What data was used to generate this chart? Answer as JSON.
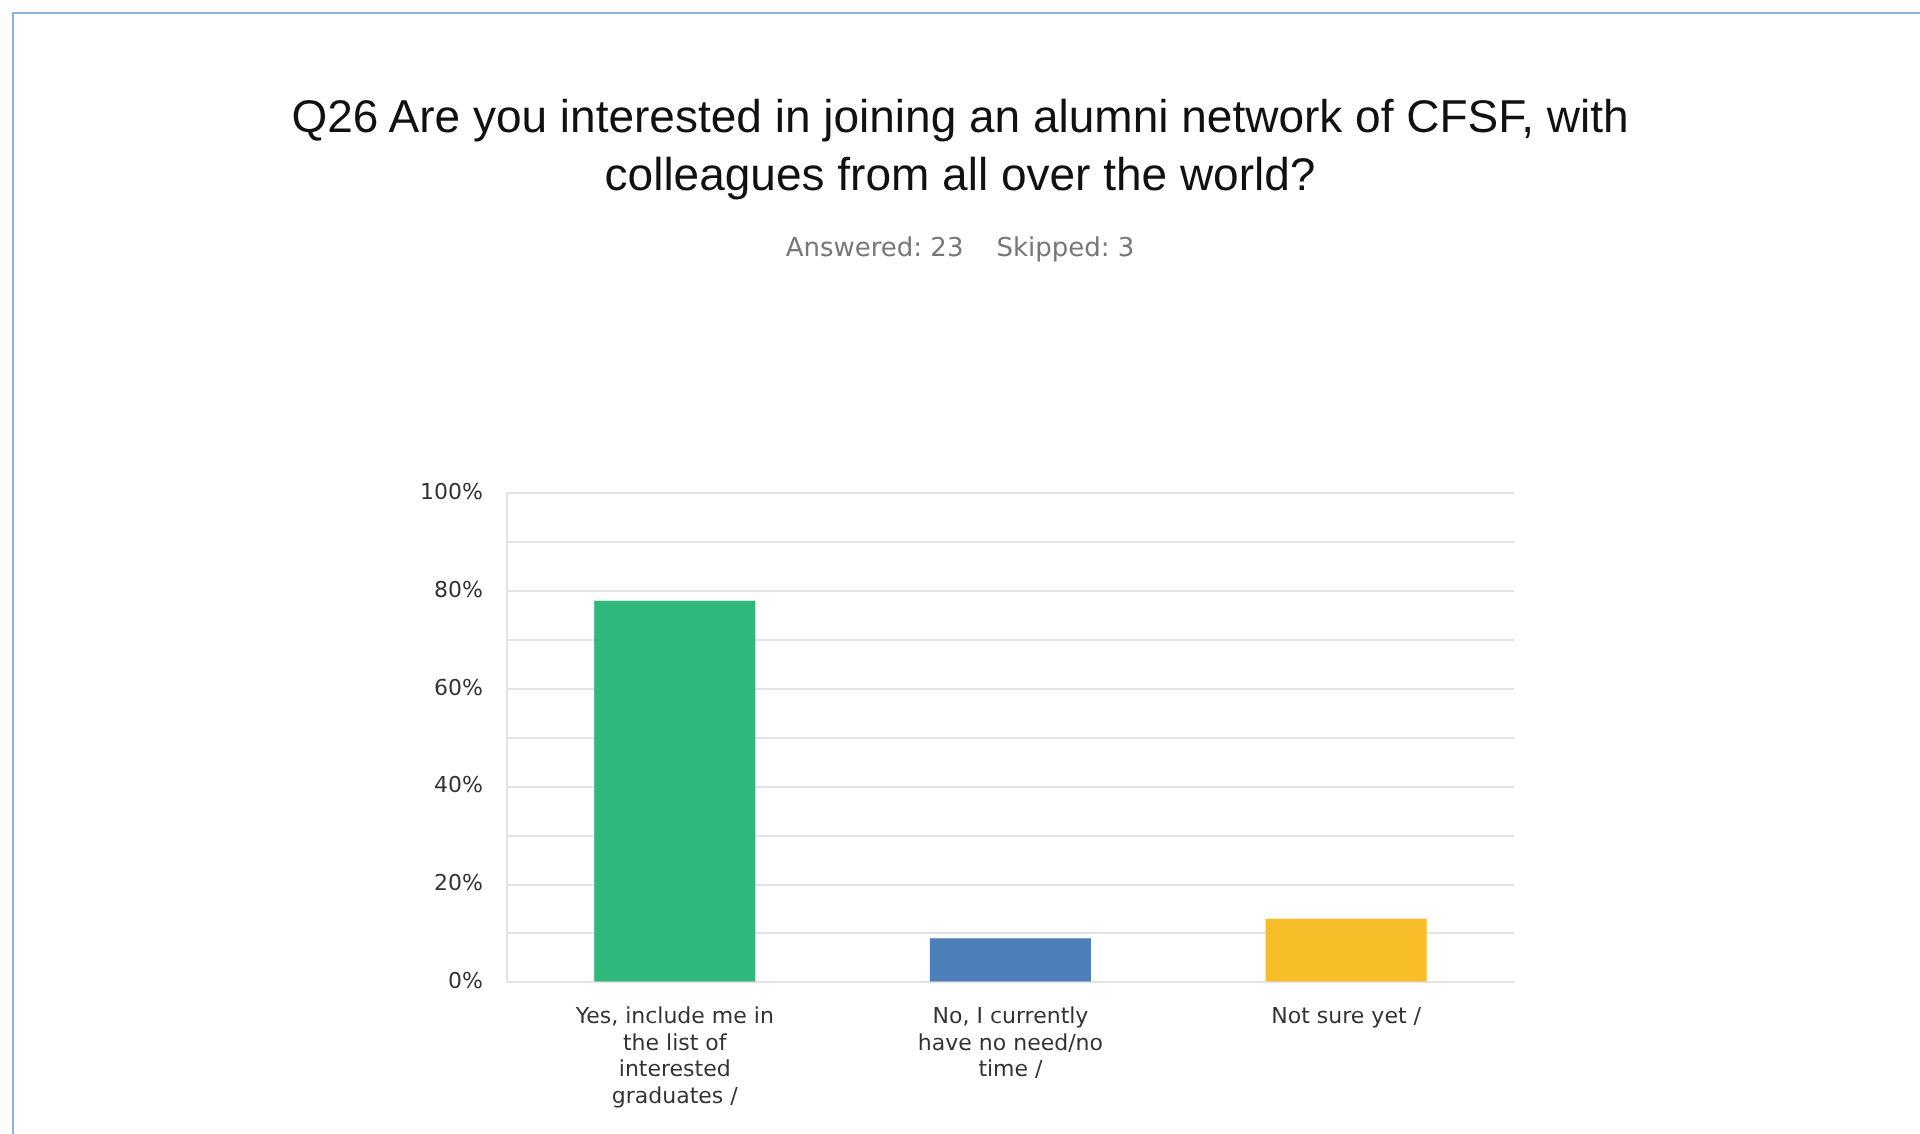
{
  "chart_data": {
    "type": "bar",
    "title": "Q26 Are you interested in joining an alumni network of CFSF, with colleagues from all over the world?",
    "subtitle": "Answered: 23    Skipped: 3",
    "categories": [
      "Yes, include me in the list of interested graduates /",
      "No, I currently have no need/no time /",
      "Not sure yet /"
    ],
    "values": [
      78,
      9,
      13
    ],
    "colors": [
      "#30b77b",
      "#4f7fba",
      "#f8be2a"
    ],
    "ylim": [
      0,
      100
    ],
    "yticks": [
      {
        "value": 0,
        "label": "0%"
      },
      {
        "value": 10,
        "label": null
      },
      {
        "value": 20,
        "label": "20%"
      },
      {
        "value": 30,
        "label": null
      },
      {
        "value": 40,
        "label": "40%"
      },
      {
        "value": 50,
        "label": null
      },
      {
        "value": 60,
        "label": "60%"
      },
      {
        "value": 70,
        "label": null
      },
      {
        "value": 80,
        "label": "80%"
      },
      {
        "value": 90,
        "label": null
      },
      {
        "value": 100,
        "label": "100%"
      }
    ],
    "grid": "y",
    "legend": false
  }
}
